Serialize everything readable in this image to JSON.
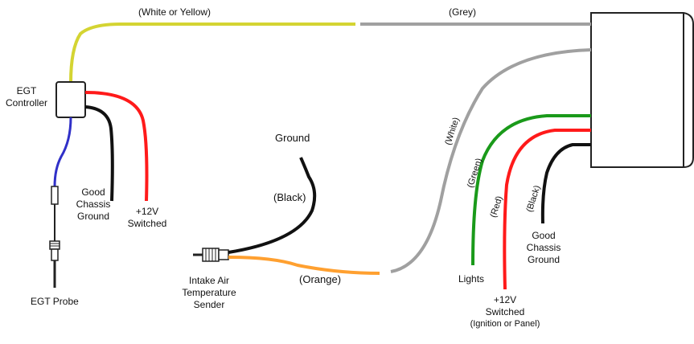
{
  "labels": {
    "white_or_yellow": "(White or Yellow)",
    "grey": "(Grey)",
    "egt_controller_1": "EGT",
    "egt_controller_2": "Controller",
    "good_chassis_ground_left_1": "Good",
    "good_chassis_ground_left_2": "Chassis",
    "good_chassis_ground_left_3": "Ground",
    "plus12v_left_1": "+12V",
    "plus12v_left_2": "Switched",
    "egt_probe": "EGT Probe",
    "ground": "Ground",
    "black_mid": "(Black)",
    "orange": "(Orange)",
    "intake_1": "Intake Air",
    "intake_2": "Temperature",
    "intake_3": "Sender",
    "white_rot": "(White)",
    "green_rot": "(Green)",
    "red_rot": "(Red)",
    "black_rot": "(Black)",
    "lights": "Lights",
    "plus12v_right_1": "+12V",
    "plus12v_right_2": "Switched",
    "plus12v_right_3": "(Ignition or Panel)",
    "good_chassis_ground_right_1": "Good",
    "good_chassis_ground_right_2": "Chassis",
    "good_chassis_ground_right_3": "Ground"
  },
  "colors": {
    "yellow_wire": "#d4d432",
    "grey_wire": "#a0a0a0",
    "red_wire": "#ff1a1a",
    "black_wire": "#111111",
    "blue_wire": "#3030c8",
    "green_wire": "#1a9a1a",
    "orange_wire": "#ffa030",
    "outline": "#222222"
  }
}
